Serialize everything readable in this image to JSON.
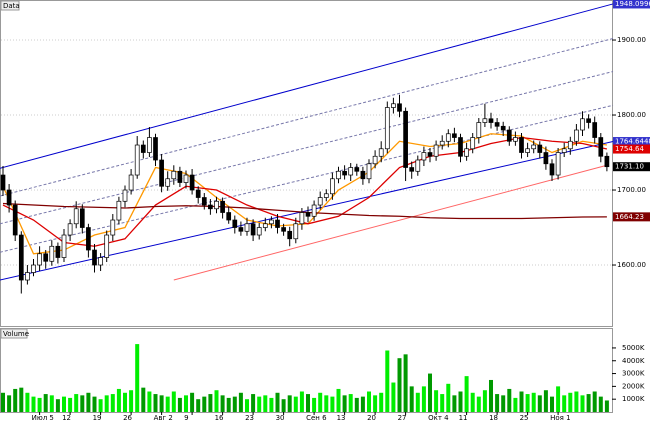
{
  "chart_data": {
    "type": "candlestick",
    "title": "Data",
    "categories": [
      null,
      null,
      null,
      null,
      null,
      null,
      "Июл 5",
      null,
      null,
      null,
      null,
      "12",
      null,
      null,
      null,
      null,
      "19",
      null,
      null,
      null,
      null,
      "26",
      null,
      null,
      null,
      null,
      "Авг 2",
      null,
      null,
      null,
      null,
      "9",
      null,
      null,
      null,
      null,
      "16",
      null,
      null,
      null,
      null,
      "23",
      null,
      null,
      null,
      null,
      "30",
      null,
      null,
      null,
      null,
      "Сен 6",
      null,
      null,
      null,
      null,
      "13",
      null,
      null,
      null,
      null,
      "20",
      null,
      null,
      null,
      null,
      "27",
      null,
      null,
      null,
      null,
      "Окт 4",
      null,
      null,
      null,
      null,
      "11",
      null,
      null,
      null,
      null,
      "18",
      null,
      null,
      null,
      null,
      "25",
      null,
      null,
      null,
      null,
      "Ноя 1",
      null,
      null,
      null,
      null,
      null,
      null,
      null,
      null
    ],
    "open": [
      1720,
      1700,
      1680,
      1640,
      1580,
      1590,
      1600,
      1615,
      1605,
      1625,
      1610,
      1640,
      1655,
      1675,
      1650,
      1620,
      1600,
      1610,
      1640,
      1660,
      1685,
      1700,
      1720,
      1760,
      1750,
      1770,
      1740,
      1705,
      1715,
      1725,
      1710,
      1720,
      1700,
      1690,
      1680,
      1675,
      1685,
      1670,
      1660,
      1650,
      1645,
      1655,
      1640,
      1650,
      1655,
      1660,
      1650,
      1645,
      1635,
      1655,
      1670,
      1665,
      1680,
      1690,
      1695,
      1715,
      1725,
      1720,
      1730,
      1725,
      1715,
      1735,
      1745,
      1755,
      1810,
      1815,
      1805,
      1730,
      1725,
      1740,
      1750,
      1745,
      1760,
      1765,
      1775,
      1770,
      1745,
      1755,
      1770,
      1790,
      1795,
      1790,
      1785,
      1780,
      1765,
      1770,
      1750,
      1755,
      1760,
      1750,
      1735,
      1720,
      1750,
      1755,
      1765,
      1780,
      1795,
      1790,
      1770,
      1745
    ],
    "high": [
      1732,
      1708,
      1686,
      1645,
      1600,
      1608,
      1625,
      1620,
      1633,
      1630,
      1648,
      1661,
      1685,
      1681,
      1655,
      1628,
      1616,
      1646,
      1668,
      1691,
      1706,
      1728,
      1772,
      1766,
      1784,
      1775,
      1748,
      1725,
      1733,
      1731,
      1726,
      1728,
      1705,
      1696,
      1688,
      1691,
      1690,
      1678,
      1666,
      1658,
      1663,
      1661,
      1656,
      1663,
      1665,
      1668,
      1655,
      1651,
      1663,
      1676,
      1678,
      1686,
      1698,
      1701,
      1723,
      1731,
      1733,
      1736,
      1735,
      1731,
      1741,
      1753,
      1765,
      1818,
      1823,
      1827,
      1810,
      1738,
      1746,
      1758,
      1756,
      1766,
      1773,
      1781,
      1783,
      1775,
      1763,
      1776,
      1796,
      1815,
      1803,
      1796,
      1791,
      1785,
      1778,
      1776,
      1763,
      1766,
      1765,
      1758,
      1741,
      1756,
      1763,
      1771,
      1788,
      1805,
      1801,
      1798,
      1776,
      1750
    ],
    "low": [
      1692,
      1670,
      1632,
      1562,
      1574,
      1585,
      1592,
      1595,
      1599,
      1602,
      1604,
      1632,
      1649,
      1642,
      1610,
      1590,
      1592,
      1604,
      1632,
      1654,
      1677,
      1694,
      1715,
      1742,
      1744,
      1732,
      1697,
      1699,
      1707,
      1704,
      1702,
      1694,
      1682,
      1674,
      1667,
      1669,
      1662,
      1655,
      1642,
      1639,
      1639,
      1632,
      1634,
      1645,
      1649,
      1642,
      1639,
      1625,
      1629,
      1647,
      1657,
      1659,
      1674,
      1685,
      1687,
      1709,
      1714,
      1712,
      1719,
      1707,
      1709,
      1729,
      1737,
      1749,
      1802,
      1797,
      1712,
      1715,
      1719,
      1732,
      1737,
      1739,
      1754,
      1757,
      1764,
      1737,
      1739,
      1749,
      1762,
      1784,
      1782,
      1779,
      1772,
      1759,
      1759,
      1742,
      1744,
      1749,
      1742,
      1727,
      1712,
      1714,
      1744,
      1747,
      1759,
      1772,
      1782,
      1762,
      1737,
      1725
    ],
    "close": [
      1700,
      1680,
      1640,
      1580,
      1590,
      1600,
      1615,
      1605,
      1625,
      1610,
      1640,
      1655,
      1675,
      1650,
      1620,
      1600,
      1610,
      1640,
      1660,
      1685,
      1700,
      1720,
      1760,
      1750,
      1770,
      1740,
      1705,
      1715,
      1725,
      1710,
      1720,
      1700,
      1690,
      1680,
      1675,
      1685,
      1670,
      1660,
      1650,
      1645,
      1655,
      1640,
      1650,
      1655,
      1660,
      1650,
      1645,
      1635,
      1655,
      1670,
      1665,
      1680,
      1690,
      1695,
      1715,
      1725,
      1720,
      1730,
      1725,
      1715,
      1735,
      1745,
      1755,
      1810,
      1815,
      1805,
      1730,
      1725,
      1740,
      1750,
      1745,
      1760,
      1765,
      1775,
      1770,
      1745,
      1755,
      1770,
      1790,
      1795,
      1790,
      1785,
      1780,
      1765,
      1770,
      1750,
      1755,
      1760,
      1750,
      1735,
      1720,
      1750,
      1755,
      1765,
      1780,
      1795,
      1790,
      1770,
      1745,
      1731.1
    ],
    "up_color": "#ffffff",
    "down_color": "#000000",
    "wick_color": "#000000",
    "lines": [
      {
        "color": "#0000cc",
        "dash": false,
        "x": [
          -0.5,
          100
        ],
        "values": [
          1729,
          1948.0996
        ]
      },
      {
        "color": "#7777aa",
        "dash": true,
        "x": [
          -0.5,
          100
        ],
        "values": [
          1692,
          1902
        ]
      },
      {
        "color": "#7777aa",
        "dash": true,
        "x": [
          -0.5,
          100
        ],
        "values": [
          1655,
          1858
        ]
      },
      {
        "color": "#7777aa",
        "dash": true,
        "x": [
          -0.5,
          100
        ],
        "values": [
          1617,
          1813
        ]
      },
      {
        "color": "#0000cc",
        "dash": false,
        "x": [
          -0.5,
          100
        ],
        "values": [
          1580,
          1764.6448
        ]
      },
      {
        "color": "#ff6666",
        "dash": false,
        "x": [
          28,
          99
        ],
        "values": [
          1580,
          1733
        ]
      },
      {
        "color": "#ff9900",
        "dash": false,
        "x": [
          0,
          5,
          10,
          15,
          20,
          25,
          30,
          35,
          40,
          45,
          50,
          55,
          60,
          65,
          70,
          75,
          80,
          85,
          90,
          95,
          99
        ],
        "values": [
          1705,
          1615,
          1620,
          1640,
          1650,
          1730,
          1722,
          1690,
          1660,
          1652,
          1655,
          1700,
          1724,
          1765,
          1758,
          1762,
          1775,
          1772,
          1750,
          1765,
          1760
        ]
      },
      {
        "color": "#dd0000",
        "dash": false,
        "x": [
          0,
          5,
          10,
          15,
          20,
          25,
          30,
          35,
          40,
          45,
          50,
          55,
          60,
          65,
          70,
          75,
          80,
          85,
          90,
          95,
          99
        ],
        "values": [
          1680,
          1660,
          1630,
          1625,
          1635,
          1680,
          1705,
          1700,
          1680,
          1665,
          1655,
          1665,
          1690,
          1730,
          1745,
          1750,
          1762,
          1770,
          1765,
          1762,
          1754.64
        ]
      },
      {
        "color": "#800000",
        "dash": false,
        "x": [
          0,
          5,
          10,
          15,
          20,
          25,
          30,
          35,
          40,
          45,
          50,
          55,
          60,
          65,
          70,
          75,
          80,
          85,
          90,
          95,
          99
        ],
        "values": [
          1682,
          1680,
          1678,
          1677,
          1676,
          1678,
          1679,
          1678,
          1676,
          1673,
          1670,
          1668,
          1666,
          1665,
          1663,
          1662,
          1662,
          1662,
          1663,
          1664,
          1664.23
        ]
      }
    ],
    "markers": [
      {
        "value": 1948.0996,
        "label": "1948.0996",
        "color": "#3333cc"
      },
      {
        "value": 1764.6448,
        "label": "1764.6448",
        "color": "#3333cc"
      },
      {
        "value": 1754.64,
        "label": "1754.64",
        "color": "#dd0000"
      },
      {
        "value": 1731.1,
        "label": "1731.10",
        "color": "#000000"
      },
      {
        "value": 1664.23,
        "label": "1664.23",
        "color": "#800000"
      }
    ],
    "ylim": [
      1518.7,
      1950.7
    ],
    "yticks": [
      {
        "value": 1600,
        "label": "1600.00"
      },
      {
        "value": 1700,
        "label": "1700.00"
      },
      {
        "value": 1800,
        "label": "1800.00"
      },
      {
        "value": 1900,
        "label": "1900.00"
      }
    ],
    "grid": true,
    "volume": {
      "title": "Volume",
      "up_color": "#00ee00",
      "down_color": "#009900",
      "values": [
        1500,
        1300,
        1800,
        1900,
        1500,
        1200,
        1100,
        1400,
        1300,
        1000,
        1200,
        1100,
        1400,
        1300,
        1500,
        1200,
        1000,
        1300,
        1400,
        1800,
        1500,
        1700,
        5300,
        1900,
        1600,
        1400,
        1300,
        1200,
        1600,
        1100,
        1300,
        1500,
        1000,
        1200,
        1400,
        1700,
        1300,
        1100,
        1200,
        1500,
        1000,
        1400,
        1200,
        1300,
        1100,
        1500,
        1000,
        1300,
        1200,
        1600,
        1400,
        1100,
        1500,
        1300,
        1200,
        1800,
        1300,
        1400,
        1100,
        1200,
        1600,
        1300,
        1500,
        4800,
        2300,
        4200,
        4500,
        2000,
        1500,
        2000,
        3000,
        1700,
        1400,
        2200,
        1300,
        1600,
        2800,
        1500,
        1200,
        1700,
        2500,
        1400,
        1300,
        1800,
        1100,
        1600,
        1400,
        1500,
        1300,
        1700,
        1200,
        2000,
        1300,
        1500,
        1600,
        1300,
        1400,
        1600,
        1200,
        900
      ],
      "ylim": [
        0,
        6400
      ],
      "yticks": [
        {
          "value": 1000,
          "label": "1000K"
        },
        {
          "value": 2000,
          "label": "2000K"
        },
        {
          "value": 3000,
          "label": "3000K"
        },
        {
          "value": 4000,
          "label": "4000K"
        },
        {
          "value": 5000,
          "label": "5000K"
        }
      ]
    }
  }
}
